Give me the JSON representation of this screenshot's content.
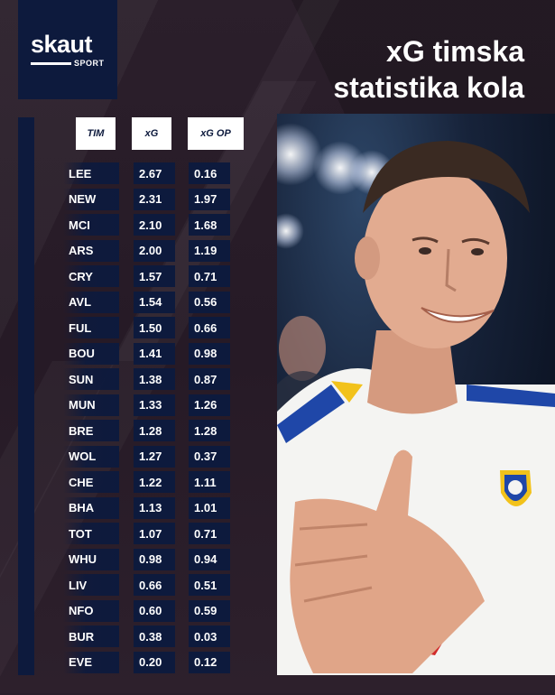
{
  "brand": {
    "name": "skaut",
    "sub": "SPORT"
  },
  "title": {
    "line1": "xG timska",
    "line2": "statistika kola"
  },
  "table": {
    "headers": {
      "team": "TIM",
      "xg": "xG",
      "xg_op": "xG OP"
    },
    "rows": [
      {
        "team": "LEE",
        "xg": "2.67",
        "xg_op": "0.16"
      },
      {
        "team": "NEW",
        "xg": "2.31",
        "xg_op": "1.97"
      },
      {
        "team": "MCI",
        "xg": "2.10",
        "xg_op": "1.68"
      },
      {
        "team": "ARS",
        "xg": "2.00",
        "xg_op": "1.19"
      },
      {
        "team": "CRY",
        "xg": "1.57",
        "xg_op": "0.71"
      },
      {
        "team": "AVL",
        "xg": "1.54",
        "xg_op": "0.56"
      },
      {
        "team": "FUL",
        "xg": "1.50",
        "xg_op": "0.66"
      },
      {
        "team": "BOU",
        "xg": "1.41",
        "xg_op": "0.98"
      },
      {
        "team": "SUN",
        "xg": "1.38",
        "xg_op": "0.87"
      },
      {
        "team": "MUN",
        "xg": "1.33",
        "xg_op": "1.26"
      },
      {
        "team": "BRE",
        "xg": "1.28",
        "xg_op": "1.28"
      },
      {
        "team": "WOL",
        "xg": "1.27",
        "xg_op": "0.37"
      },
      {
        "team": "CHE",
        "xg": "1.22",
        "xg_op": "1.11"
      },
      {
        "team": "BHA",
        "xg": "1.13",
        "xg_op": "1.01"
      },
      {
        "team": "TOT",
        "xg": "1.07",
        "xg_op": "0.71"
      },
      {
        "team": "WHU",
        "xg": "0.98",
        "xg_op": "0.94"
      },
      {
        "team": "LIV",
        "xg": "0.66",
        "xg_op": "0.51"
      },
      {
        "team": "NFO",
        "xg": "0.60",
        "xg_op": "0.59"
      },
      {
        "team": "BUR",
        "xg": "0.38",
        "xg_op": "0.03"
      },
      {
        "team": "EVE",
        "xg": "0.20",
        "xg_op": "0.12"
      }
    ]
  },
  "colors": {
    "navy": "#0d1a3d",
    "background": "#2a1e2a",
    "white": "#ffffff"
  },
  "photo": {
    "subject": "player-photo",
    "icon": "player-portrait"
  }
}
